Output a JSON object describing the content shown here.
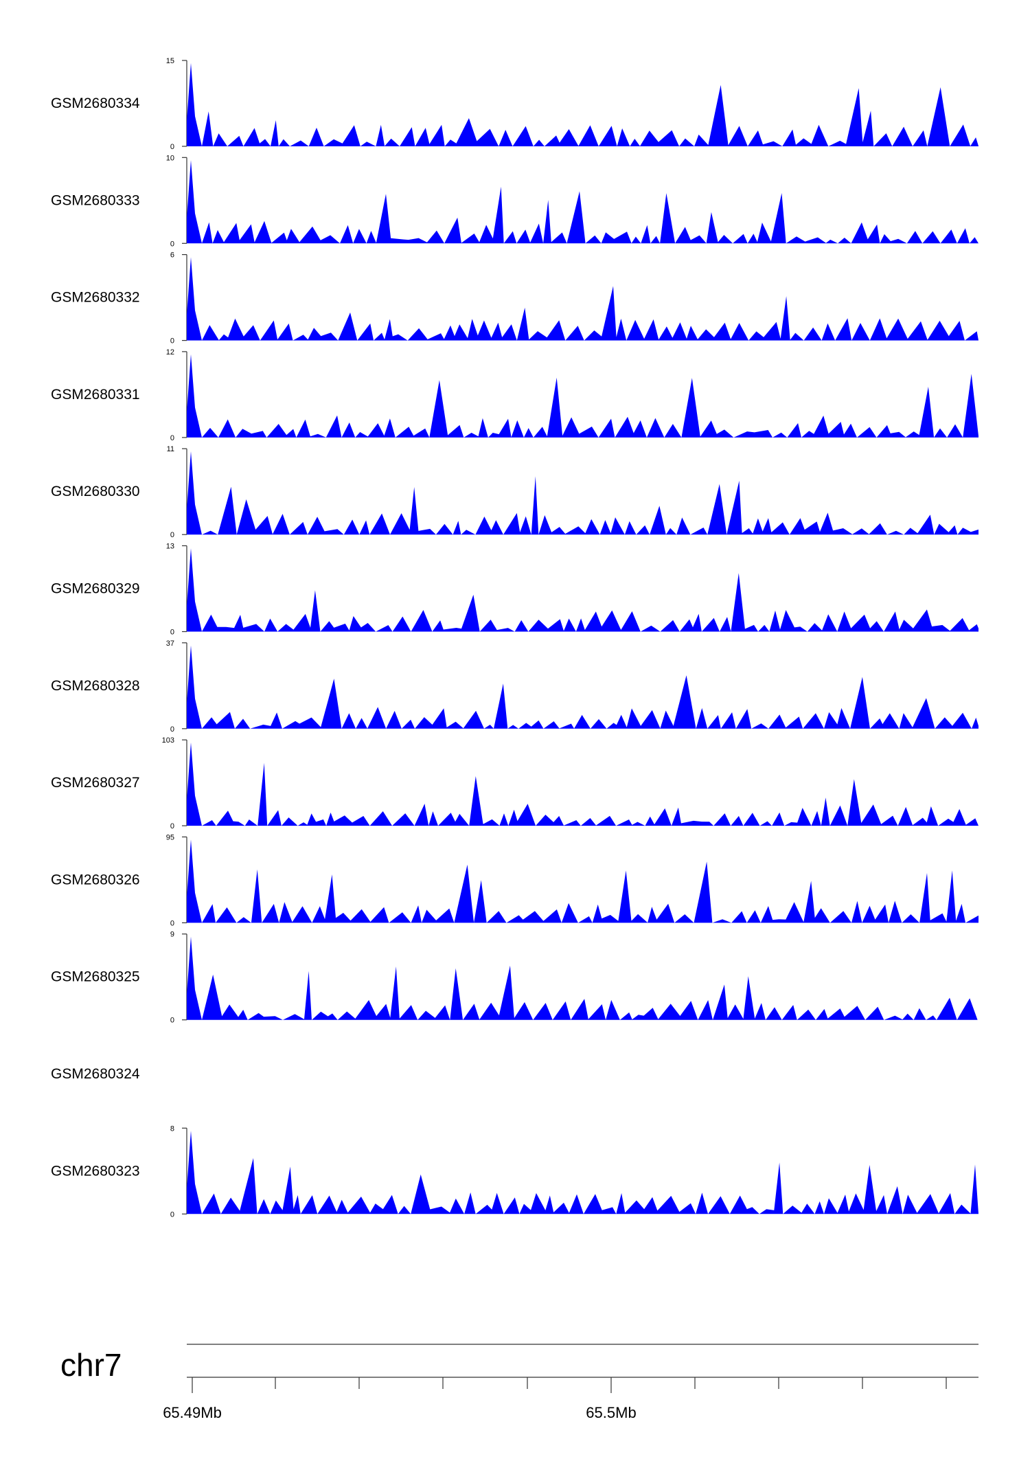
{
  "chart_data": {
    "type": "area",
    "color": "#0000ff",
    "chromosome": "chr7",
    "x_ticks": [
      {
        "label": "65.49Mb",
        "value": 65.49
      },
      {
        "label": "65.5Mb",
        "value": 65.5
      }
    ],
    "tracks": [
      {
        "name": "GSM2680334",
        "ymin": "0",
        "ymax": "15",
        "max": 15
      },
      {
        "name": "GSM2680333",
        "ymin": "0",
        "ymax": "10",
        "max": 10
      },
      {
        "name": "GSM2680332",
        "ymin": "0",
        "ymax": "6",
        "max": 6
      },
      {
        "name": "GSM2680331",
        "ymin": "0",
        "ymax": "12",
        "max": 12
      },
      {
        "name": "GSM2680330",
        "ymin": "0",
        "ymax": "11",
        "max": 11
      },
      {
        "name": "GSM2680329",
        "ymin": "0",
        "ymax": "13",
        "max": 13
      },
      {
        "name": "GSM2680328",
        "ymin": "0",
        "ymax": "37",
        "max": 37
      },
      {
        "name": "GSM2680327",
        "ymin": "0",
        "ymax": "103",
        "max": 103
      },
      {
        "name": "GSM2680326",
        "ymin": "0",
        "ymax": "95",
        "max": 95
      },
      {
        "name": "GSM2680325",
        "ymin": "0",
        "ymax": "9",
        "max": 9
      },
      {
        "name": "GSM2680324",
        "ymin": "",
        "ymax": "",
        "max": 0,
        "empty": true
      },
      {
        "name": "GSM2680323",
        "ymin": "0",
        "ymax": "8",
        "max": 8
      }
    ]
  }
}
